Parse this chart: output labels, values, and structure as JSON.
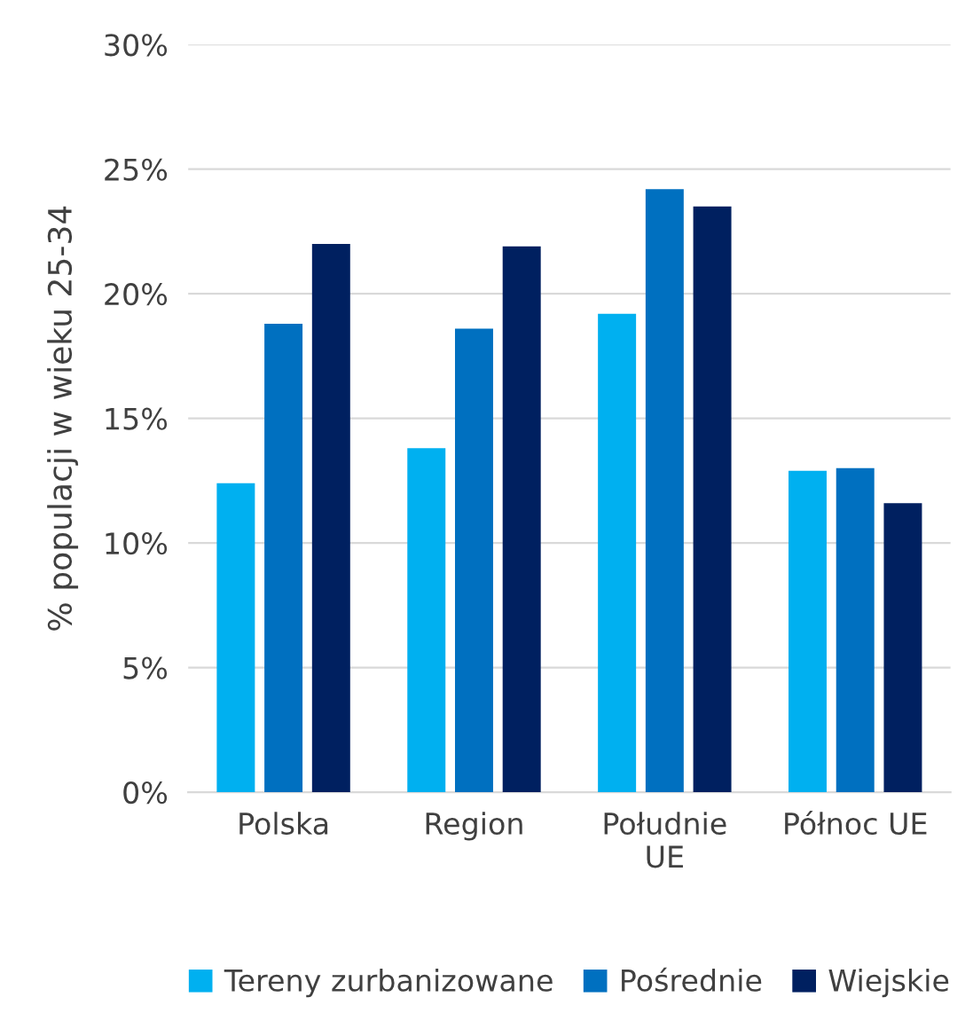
{
  "chart_data": {
    "type": "bar",
    "ylabel": "% populacji w wieku 25-34",
    "categories": [
      "Polska",
      "Region",
      "Południe\nUE",
      "Północ UE"
    ],
    "series": [
      {
        "name": "Tereny zurbanizowane",
        "color": "#00b0f0",
        "values": [
          12.4,
          13.8,
          19.2,
          12.9
        ]
      },
      {
        "name": "Pośrednie",
        "color": "#0070c0",
        "values": [
          18.8,
          18.6,
          24.2,
          13.0
        ]
      },
      {
        "name": "Wiejskie",
        "color": "#002060",
        "values": [
          22.0,
          21.9,
          23.5,
          11.6
        ]
      }
    ],
    "ylim": [
      0,
      30
    ],
    "yticks": [
      {
        "value": 0,
        "label": "0%"
      },
      {
        "value": 5,
        "label": "5%"
      },
      {
        "value": 10,
        "label": "10%"
      },
      {
        "value": 15,
        "label": "15%"
      },
      {
        "value": 20,
        "label": "20%"
      },
      {
        "value": 25,
        "label": "25%"
      },
      {
        "value": 30,
        "label": "30%"
      }
    ],
    "grid": "y",
    "legend": "bottom"
  }
}
